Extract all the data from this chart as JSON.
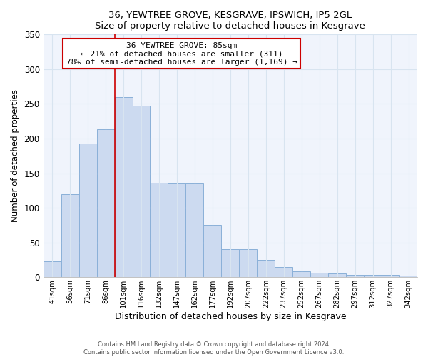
{
  "title": "36, YEWTREE GROVE, KESGRAVE, IPSWICH, IP5 2GL",
  "subtitle": "Size of property relative to detached houses in Kesgrave",
  "xlabel": "Distribution of detached houses by size in Kesgrave",
  "ylabel": "Number of detached properties",
  "bar_labels": [
    "41sqm",
    "56sqm",
    "71sqm",
    "86sqm",
    "101sqm",
    "116sqm",
    "132sqm",
    "147sqm",
    "162sqm",
    "177sqm",
    "192sqm",
    "207sqm",
    "222sqm",
    "237sqm",
    "252sqm",
    "267sqm",
    "282sqm",
    "297sqm",
    "312sqm",
    "327sqm",
    "342sqm"
  ],
  "bar_values": [
    23,
    120,
    193,
    213,
    260,
    247,
    136,
    135,
    135,
    75,
    40,
    40,
    25,
    15,
    9,
    6,
    5,
    3,
    3,
    3,
    2
  ],
  "bar_color": "#ccdaf0",
  "bar_edge_color": "#8ab0d8",
  "vline_x": 3.5,
  "vline_color": "#cc0000",
  "annotation_title": "36 YEWTREE GROVE: 85sqm",
  "annotation_line1": "← 21% of detached houses are smaller (311)",
  "annotation_line2": "78% of semi-detached houses are larger (1,169) →",
  "annotation_box_edge": "#cc0000",
  "ylim": [
    0,
    350
  ],
  "yticks": [
    0,
    50,
    100,
    150,
    200,
    250,
    300,
    350
  ],
  "footer1": "Contains HM Land Registry data © Crown copyright and database right 2024.",
  "footer2": "Contains public sector information licensed under the Open Government Licence v3.0.",
  "bg_color": "#ffffff",
  "plot_bg_color": "#f0f4fc",
  "grid_color": "#d8e4f0"
}
